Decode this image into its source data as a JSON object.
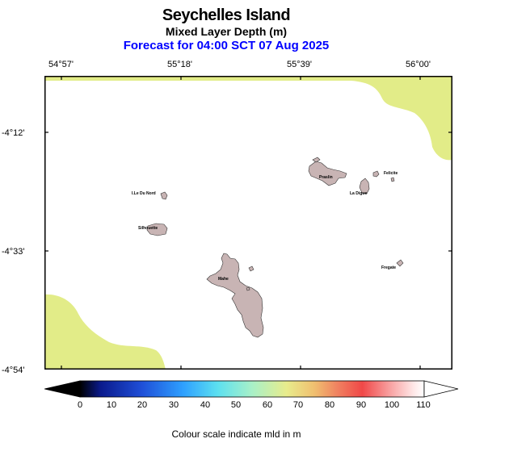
{
  "header": {
    "title": "Seychelles Island",
    "subtitle": "Mixed Layer Depth (m)",
    "forecast": "Forecast for  04:00 SCT 07 Aug 2025"
  },
  "axes": {
    "lon_labels": [
      "54°57'",
      "55°18'",
      "55°39'",
      "56°00'"
    ],
    "lat_labels": [
      "-4°12'",
      "-4°33'",
      "-4°54'"
    ]
  },
  "places": [
    "I.Le Du Nord",
    "Silhouette",
    "Praslin",
    "Felicite",
    "La Digue",
    "Mahe",
    "Fregate"
  ],
  "colorbar": {
    "ticks": [
      "0",
      "10",
      "20",
      "30",
      "40",
      "50",
      "60",
      "70",
      "80",
      "90",
      "100",
      "110"
    ],
    "colors": [
      "#000000",
      "#0a1a8c",
      "#1f4fd8",
      "#2ea0ff",
      "#5ce0f0",
      "#a8f0c8",
      "#e8ec8c",
      "#f0c070",
      "#f08060",
      "#f04848",
      "#f8a0a0",
      "#ffe8e8",
      "#ffffff"
    ]
  },
  "caption": "Colour scale indicate mld in m",
  "colors": {
    "land": "#c8b4b4",
    "shade": "#e2ec88",
    "title_accent": "#0000ff"
  }
}
